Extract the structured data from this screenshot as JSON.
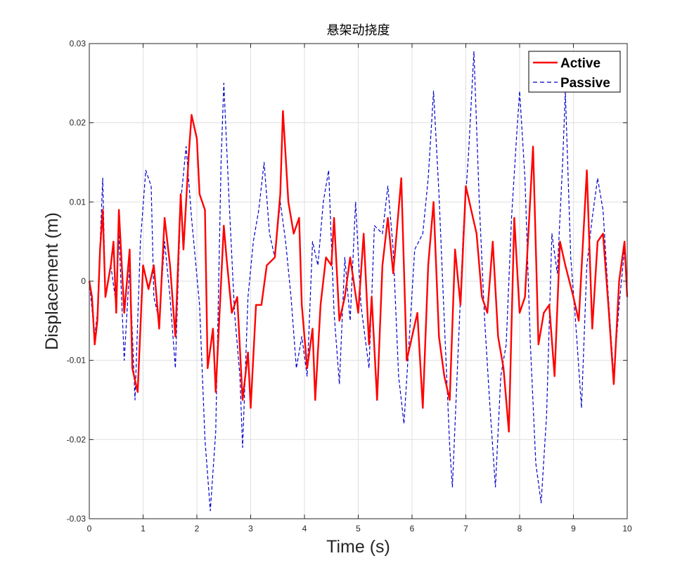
{
  "chart_data": {
    "type": "line",
    "title": "悬架动挠度",
    "xlabel": "Time (s)",
    "ylabel": "Displacement (m)",
    "xlim": [
      0,
      10
    ],
    "ylim": [
      -0.03,
      0.03
    ],
    "x_ticks": [
      "0",
      "1",
      "2",
      "3",
      "4",
      "5",
      "6",
      "7",
      "8",
      "9",
      "10"
    ],
    "x_tick_values": [
      0,
      1,
      2,
      3,
      4,
      5,
      6,
      7,
      8,
      9,
      10
    ],
    "y_ticks": [
      "-0.03",
      "-0.02",
      "-0.01",
      "0",
      "0.01",
      "0.02",
      "0.03"
    ],
    "y_tick_values": [
      -0.03,
      -0.02,
      -0.01,
      0,
      0.01,
      0.02,
      0.03
    ],
    "grid": true,
    "legend_position": "top-right",
    "series": [
      {
        "name": "Active",
        "color": "#ff0000",
        "style": "solid",
        "points": [
          [
            0.0,
            0.0
          ],
          [
            0.05,
            -0.002
          ],
          [
            0.1,
            -0.008
          ],
          [
            0.15,
            -0.005
          ],
          [
            0.2,
            0.004
          ],
          [
            0.25,
            0.009
          ],
          [
            0.3,
            -0.002
          ],
          [
            0.4,
            0.002
          ],
          [
            0.45,
            0.005
          ],
          [
            0.5,
            -0.004
          ],
          [
            0.55,
            0.009
          ],
          [
            0.65,
            -0.004
          ],
          [
            0.75,
            0.004
          ],
          [
            0.8,
            -0.011
          ],
          [
            0.9,
            -0.014
          ],
          [
            1.0,
            0.002
          ],
          [
            1.1,
            -0.001
          ],
          [
            1.2,
            0.002
          ],
          [
            1.3,
            -0.006
          ],
          [
            1.4,
            0.008
          ],
          [
            1.5,
            0.002
          ],
          [
            1.6,
            -0.007
          ],
          [
            1.7,
            0.011
          ],
          [
            1.75,
            0.004
          ],
          [
            1.85,
            0.016
          ],
          [
            1.9,
            0.021
          ],
          [
            2.0,
            0.018
          ],
          [
            2.05,
            0.011
          ],
          [
            2.15,
            0.009
          ],
          [
            2.2,
            -0.011
          ],
          [
            2.3,
            -0.006
          ],
          [
            2.35,
            -0.014
          ],
          [
            2.5,
            0.007
          ],
          [
            2.55,
            0.003
          ],
          [
            2.65,
            -0.004
          ],
          [
            2.75,
            -0.002
          ],
          [
            2.85,
            -0.015
          ],
          [
            2.95,
            -0.009
          ],
          [
            3.0,
            -0.016
          ],
          [
            3.1,
            -0.003
          ],
          [
            3.2,
            -0.003
          ],
          [
            3.3,
            0.002
          ],
          [
            3.45,
            0.003
          ],
          [
            3.55,
            0.011
          ],
          [
            3.6,
            0.0215
          ],
          [
            3.7,
            0.01
          ],
          [
            3.8,
            0.006
          ],
          [
            3.9,
            0.008
          ],
          [
            3.95,
            -0.003
          ],
          [
            4.05,
            -0.011
          ],
          [
            4.15,
            -0.006
          ],
          [
            4.2,
            -0.015
          ],
          [
            4.3,
            -0.003
          ],
          [
            4.4,
            0.003
          ],
          [
            4.5,
            0.002
          ],
          [
            4.55,
            0.008
          ],
          [
            4.65,
            -0.005
          ],
          [
            4.75,
            -0.002
          ],
          [
            4.85,
            0.003
          ],
          [
            5.0,
            -0.004
          ],
          [
            5.1,
            0.006
          ],
          [
            5.2,
            -0.008
          ],
          [
            5.25,
            -0.002
          ],
          [
            5.35,
            -0.015
          ],
          [
            5.45,
            0.002
          ],
          [
            5.55,
            0.008
          ],
          [
            5.65,
            0.001
          ],
          [
            5.8,
            0.013
          ],
          [
            5.9,
            -0.01
          ],
          [
            6.0,
            -0.007
          ],
          [
            6.1,
            -0.004
          ],
          [
            6.2,
            -0.016
          ],
          [
            6.3,
            0.002
          ],
          [
            6.4,
            0.01
          ],
          [
            6.5,
            -0.007
          ],
          [
            6.6,
            -0.012
          ],
          [
            6.7,
            -0.015
          ],
          [
            6.8,
            0.004
          ],
          [
            6.9,
            -0.003
          ],
          [
            7.0,
            0.012
          ],
          [
            7.1,
            0.009
          ],
          [
            7.2,
            0.006
          ],
          [
            7.3,
            -0.002
          ],
          [
            7.4,
            -0.004
          ],
          [
            7.5,
            0.005
          ],
          [
            7.6,
            -0.007
          ],
          [
            7.7,
            -0.011
          ],
          [
            7.8,
            -0.019
          ],
          [
            7.9,
            0.008
          ],
          [
            8.0,
            -0.004
          ],
          [
            8.1,
            -0.002
          ],
          [
            8.25,
            0.017
          ],
          [
            8.35,
            -0.008
          ],
          [
            8.45,
            -0.004
          ],
          [
            8.55,
            -0.003
          ],
          [
            8.65,
            -0.012
          ],
          [
            8.75,
            0.005
          ],
          [
            8.85,
            0.002
          ],
          [
            9.0,
            -0.002
          ],
          [
            9.1,
            -0.005
          ],
          [
            9.25,
            0.014
          ],
          [
            9.35,
            -0.006
          ],
          [
            9.45,
            0.005
          ],
          [
            9.55,
            0.006
          ],
          [
            9.65,
            -0.003
          ],
          [
            9.75,
            -0.013
          ],
          [
            9.85,
            0.0
          ],
          [
            9.95,
            0.005
          ],
          [
            10.0,
            -0.002
          ]
        ]
      },
      {
        "name": "Passive",
        "color": "#0000cd",
        "style": "dashed",
        "points": [
          [
            0.0,
            0.0
          ],
          [
            0.1,
            -0.007
          ],
          [
            0.15,
            -0.004
          ],
          [
            0.25,
            0.013
          ],
          [
            0.3,
            -0.002
          ],
          [
            0.4,
            0.002
          ],
          [
            0.5,
            -0.003
          ],
          [
            0.55,
            0.006
          ],
          [
            0.65,
            -0.01
          ],
          [
            0.75,
            0.002
          ],
          [
            0.85,
            -0.015
          ],
          [
            0.95,
            0.005
          ],
          [
            1.05,
            0.014
          ],
          [
            1.15,
            0.012
          ],
          [
            1.2,
            -0.002
          ],
          [
            1.3,
            -0.005
          ],
          [
            1.4,
            0.005
          ],
          [
            1.5,
            -0.002
          ],
          [
            1.6,
            -0.011
          ],
          [
            1.7,
            0.01
          ],
          [
            1.8,
            0.017
          ],
          [
            1.9,
            0.008
          ],
          [
            2.05,
            -0.003
          ],
          [
            2.15,
            -0.02
          ],
          [
            2.25,
            -0.029
          ],
          [
            2.35,
            -0.019
          ],
          [
            2.45,
            0.015
          ],
          [
            2.5,
            0.025
          ],
          [
            2.6,
            0.01
          ],
          [
            2.7,
            -0.004
          ],
          [
            2.8,
            -0.012
          ],
          [
            2.85,
            -0.021
          ],
          [
            2.95,
            -0.002
          ],
          [
            3.05,
            0.005
          ],
          [
            3.15,
            0.009
          ],
          [
            3.25,
            0.015
          ],
          [
            3.35,
            0.006
          ],
          [
            3.45,
            0.003
          ],
          [
            3.55,
            0.01
          ],
          [
            3.65,
            0.005
          ],
          [
            3.75,
            -0.002
          ],
          [
            3.85,
            -0.011
          ],
          [
            3.95,
            -0.007
          ],
          [
            4.05,
            -0.012
          ],
          [
            4.15,
            0.005
          ],
          [
            4.25,
            0.002
          ],
          [
            4.35,
            0.01
          ],
          [
            4.45,
            0.014
          ],
          [
            4.55,
            -0.004
          ],
          [
            4.65,
            -0.013
          ],
          [
            4.75,
            0.003
          ],
          [
            4.85,
            -0.005
          ],
          [
            4.95,
            0.01
          ],
          [
            5.05,
            -0.003
          ],
          [
            5.2,
            -0.011
          ],
          [
            5.3,
            0.007
          ],
          [
            5.45,
            0.006
          ],
          [
            5.55,
            0.012
          ],
          [
            5.65,
            0.004
          ],
          [
            5.75,
            -0.012
          ],
          [
            5.85,
            -0.018
          ],
          [
            5.95,
            -0.007
          ],
          [
            6.05,
            0.004
          ],
          [
            6.2,
            0.006
          ],
          [
            6.3,
            0.013
          ],
          [
            6.4,
            0.024
          ],
          [
            6.5,
            0.011
          ],
          [
            6.6,
            -0.005
          ],
          [
            6.7,
            -0.021
          ],
          [
            6.75,
            -0.026
          ],
          [
            6.85,
            -0.01
          ],
          [
            6.95,
            0.006
          ],
          [
            7.05,
            0.016
          ],
          [
            7.15,
            0.029
          ],
          [
            7.25,
            0.01
          ],
          [
            7.35,
            -0.005
          ],
          [
            7.45,
            -0.016
          ],
          [
            7.55,
            -0.026
          ],
          [
            7.65,
            -0.012
          ],
          [
            7.75,
            -0.008
          ],
          [
            7.85,
            0.008
          ],
          [
            7.95,
            0.019
          ],
          [
            8.0,
            0.024
          ],
          [
            8.1,
            0.013
          ],
          [
            8.2,
            -0.008
          ],
          [
            8.3,
            -0.023
          ],
          [
            8.4,
            -0.028
          ],
          [
            8.5,
            -0.017
          ],
          [
            8.6,
            0.006
          ],
          [
            8.7,
            0.001
          ],
          [
            8.8,
            0.015
          ],
          [
            8.85,
            0.024
          ],
          [
            8.95,
            0.003
          ],
          [
            9.05,
            -0.006
          ],
          [
            9.15,
            -0.016
          ],
          [
            9.25,
            0.002
          ],
          [
            9.35,
            0.008
          ],
          [
            9.45,
            0.013
          ],
          [
            9.55,
            0.009
          ],
          [
            9.65,
            -0.002
          ],
          [
            9.75,
            -0.012
          ],
          [
            9.85,
            -0.003
          ],
          [
            9.95,
            0.004
          ],
          [
            10.0,
            -0.002
          ]
        ]
      }
    ]
  }
}
